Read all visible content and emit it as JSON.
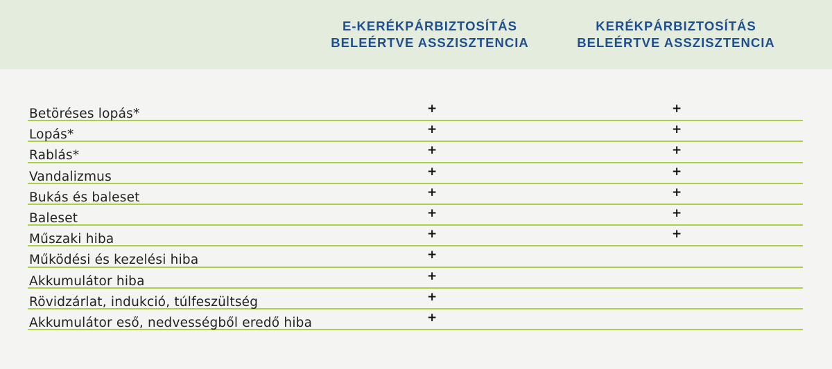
{
  "header": {
    "col_a": [
      "E-KERÉKPÁRBIZTOSÍTÁS",
      "BELEÉRTVE ASSZISZTENCIA"
    ],
    "col_b": [
      "KERÉKPÁRBIZTOSÍTÁS",
      "BELEÉRTVE ASSZISZTENCIA"
    ]
  },
  "colors": {
    "header_bg": "#e3ecdd",
    "header_text": "#1f4f8f",
    "divider": "#a9d046",
    "page_bg": "#f4f4f2"
  },
  "rows": [
    {
      "label": "Betöréses lopás*",
      "a": "+",
      "b": "+"
    },
    {
      "label": "Lopás*",
      "a": "+",
      "b": "+"
    },
    {
      "label": "Rablás*",
      "a": "+",
      "b": "+"
    },
    {
      "label": "Vandalizmus",
      "a": "+",
      "b": "+"
    },
    {
      "label": "Bukás és baleset",
      "a": "+",
      "b": "+"
    },
    {
      "label": "Baleset",
      "a": "+",
      "b": "+"
    },
    {
      "label": "Műszaki hiba",
      "a": "+",
      "b": "+"
    },
    {
      "label": "Működési és kezelési hiba",
      "a": "+",
      "b": ""
    },
    {
      "label": "Akkumulátor hiba",
      "a": "+",
      "b": ""
    },
    {
      "label": "Rövidzárlat, indukció, túlfeszültség",
      "a": "+",
      "b": ""
    },
    {
      "label": "Akkumulátor eső, nedvességből eredő hiba",
      "a": "+",
      "b": ""
    }
  ]
}
